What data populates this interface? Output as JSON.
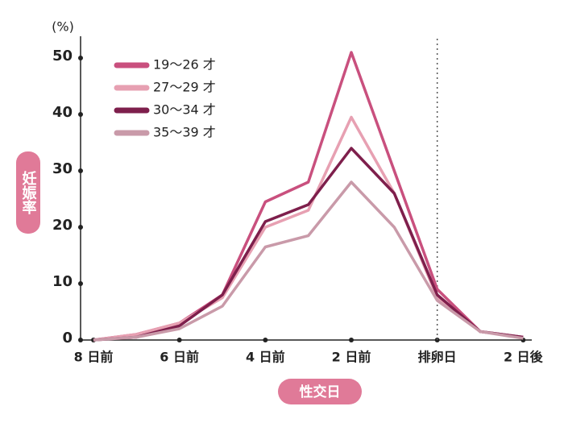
{
  "chart_data": {
    "type": "line",
    "y_unit": "(%)",
    "ylabel": "妊娠率",
    "xlabel": "性交日",
    "x": [
      -8,
      -7,
      -6,
      -5,
      -4,
      -3,
      -2,
      -1,
      0,
      1,
      2
    ],
    "xlim": [
      -8.3,
      2.2
    ],
    "xticks": [
      {
        "value": -8,
        "label": "8 日前"
      },
      {
        "value": -6,
        "label": "6 日前"
      },
      {
        "value": -4,
        "label": "4 日前"
      },
      {
        "value": -2,
        "label": "2 日前"
      },
      {
        "value": 0,
        "label": "排卵日"
      },
      {
        "value": 2,
        "label": "2 日後"
      }
    ],
    "ylim": [
      0,
      50
    ],
    "yticks": [
      0,
      10,
      20,
      30,
      40,
      50
    ],
    "vline": 0,
    "legend": "upper-left",
    "series": [
      {
        "name": "19〜26 才",
        "color": "#c9507e",
        "values": [
          0,
          1,
          3,
          8,
          24.5,
          28,
          51,
          30,
          9,
          1.5,
          0.5
        ]
      },
      {
        "name": "27〜29 才",
        "color": "#e7a0b2",
        "values": [
          0,
          1,
          3,
          7.5,
          20,
          23,
          39.5,
          26,
          7.5,
          1.5,
          0.5
        ]
      },
      {
        "name": "30〜34 才",
        "color": "#7e1f4c",
        "values": [
          0,
          0.5,
          2.5,
          8,
          21,
          24,
          34,
          26,
          8,
          1.5,
          0.5
        ]
      },
      {
        "name": "35〜39 才",
        "color": "#c99aa9",
        "values": [
          0,
          0.5,
          2,
          6,
          16.5,
          18.5,
          28,
          20,
          7,
          1.5,
          0.3
        ]
      }
    ]
  }
}
